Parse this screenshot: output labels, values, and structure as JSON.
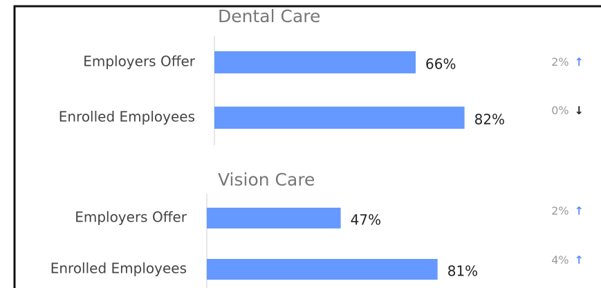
{
  "chart_data": [
    {
      "type": "bar",
      "orientation": "horizontal",
      "title": "Dental Care",
      "categories": [
        "Employers Offer",
        "Enrolled Employees"
      ],
      "values": [
        66,
        82
      ],
      "value_labels": [
        "66%",
        "82%"
      ],
      "color": "#6699ff",
      "annotations": [
        {
          "text": "2%",
          "arrow": "↑"
        },
        {
          "text": "0%",
          "arrow": "↓"
        }
      ]
    },
    {
      "type": "bar",
      "orientation": "horizontal",
      "title": "Vision Care",
      "categories": [
        "Employers Offer",
        "Enrolled Employees"
      ],
      "values": [
        47,
        81
      ],
      "value_labels": [
        "47%",
        "81%"
      ],
      "color": "#6699ff",
      "annotations": [
        {
          "text": "2%",
          "arrow": "↑"
        },
        {
          "text": "4%",
          "arrow": "↑"
        }
      ]
    }
  ]
}
